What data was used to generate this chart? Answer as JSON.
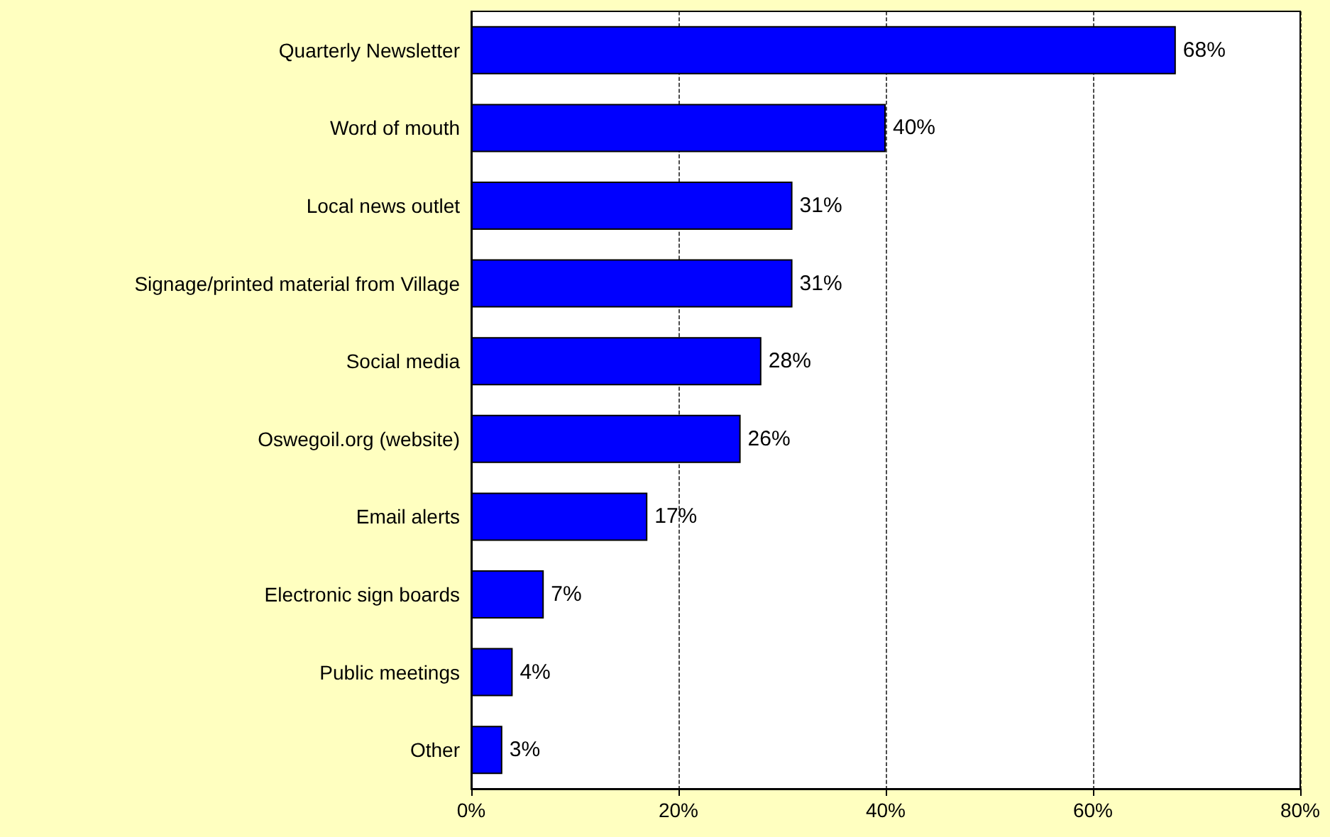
{
  "chart_data": {
    "type": "bar",
    "orientation": "horizontal",
    "categories": [
      "Quarterly Newsletter",
      "Word of mouth",
      "Local news outlet",
      "Signage/printed material from Village",
      "Social media",
      "Oswegoil.org (website)",
      "Email alerts",
      "Electronic sign boards",
      "Public meetings",
      "Other"
    ],
    "values": [
      68,
      40,
      31,
      31,
      28,
      26,
      17,
      7,
      4,
      3
    ],
    "value_labels": [
      "68%",
      "40%",
      "31%",
      "31%",
      "28%",
      "26%",
      "17%",
      "7%",
      "4%",
      "3%"
    ],
    "color": "#0000ff",
    "xlim": [
      0,
      80
    ],
    "xticks": [
      {
        "value": 0,
        "label": "0%"
      },
      {
        "value": 20,
        "label": "20%"
      },
      {
        "value": 40,
        "label": "40%"
      },
      {
        "value": 60,
        "label": "60%"
      },
      {
        "value": 80,
        "label": "80%"
      }
    ],
    "grid": "x"
  }
}
